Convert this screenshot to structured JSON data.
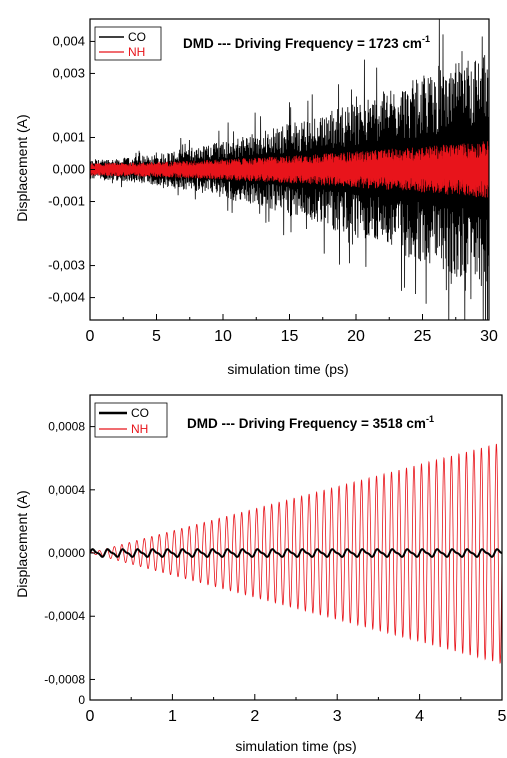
{
  "chart_data": [
    {
      "type": "line",
      "title": "DMD --- Driving Frequency = 1723 cm",
      "title_sup": "-1",
      "xlabel": "simulation time (ps)",
      "ylabel": "Displacement (A)",
      "xlim": [
        0,
        30
      ],
      "ylim": [
        -0.0047,
        0.0047
      ],
      "x_ticks": [
        0,
        5,
        10,
        15,
        20,
        25,
        30
      ],
      "x_tick_labels": [
        "0",
        "5",
        "10",
        "15",
        "20",
        "25",
        "30"
      ],
      "y_ticks": [
        0.004,
        0.003,
        0.001,
        0.0,
        -0.001,
        -0.003,
        -0.004
      ],
      "y_tick_labels": [
        "0,004",
        "0,003",
        "0,001",
        "0,000",
        "-0,001",
        "-0,003",
        "-0,004"
      ],
      "grid": false,
      "legend_position": "top-left",
      "series": [
        {
          "name": "CO",
          "color": "#000000",
          "pattern": "noisy oscillation, envelope grows from about 0.0003 at t=0 to about 0.004 at t=30",
          "x_start": 0,
          "x_end": 30,
          "amplitude_start": 0.0003,
          "amplitude_end": 0.0038
        },
        {
          "name": "NH",
          "color": "#e8141b",
          "pattern": "dense oscillation, envelope grows from about 0.0002 at t=0 to about 0.0009 at t=30",
          "x_start": 0,
          "x_end": 30,
          "amplitude_start": 0.0002,
          "amplitude_end": 0.0009
        }
      ]
    },
    {
      "type": "line",
      "title": "DMD --- Driving Frequency = 3518 cm",
      "title_sup": "-1",
      "xlabel": "simulation time (ps)",
      "ylabel": "Displacement (A)",
      "xlim": [
        0,
        5
      ],
      "ylim": [
        -0.00093,
        0.001
      ],
      "x_ticks": [
        0,
        1,
        2,
        3,
        4,
        5
      ],
      "x_tick_labels": [
        "0",
        "1",
        "2",
        "3",
        "4",
        "5"
      ],
      "y_ticks": [
        0.0008,
        0.0004,
        0.0,
        -0.0004,
        -0.0008
      ],
      "y_tick_labels": [
        "0,0008",
        "0,0004",
        "0,0000",
        "-0,0004",
        "-0,0008"
      ],
      "y_tick_label_bottom": "0",
      "grid": false,
      "legend_position": "top-left",
      "series": [
        {
          "name": "CO",
          "color": "#000000",
          "pattern": "small oscillation around zero with amplitude about 0.00002",
          "x_start": 0,
          "x_end": 5,
          "amplitude_start": 1e-05,
          "amplitude_end": 2e-05
        },
        {
          "name": "NH",
          "color": "#e8141b",
          "pattern": "sinusoid with linearly growing envelope, about 0 at t=0 to about 0.0007 at t=5, roughly 55 cycles",
          "x_start": 0,
          "x_end": 5,
          "amplitude_start": 0.0,
          "amplitude_end": 0.0007,
          "cycles": 55
        }
      ]
    }
  ]
}
